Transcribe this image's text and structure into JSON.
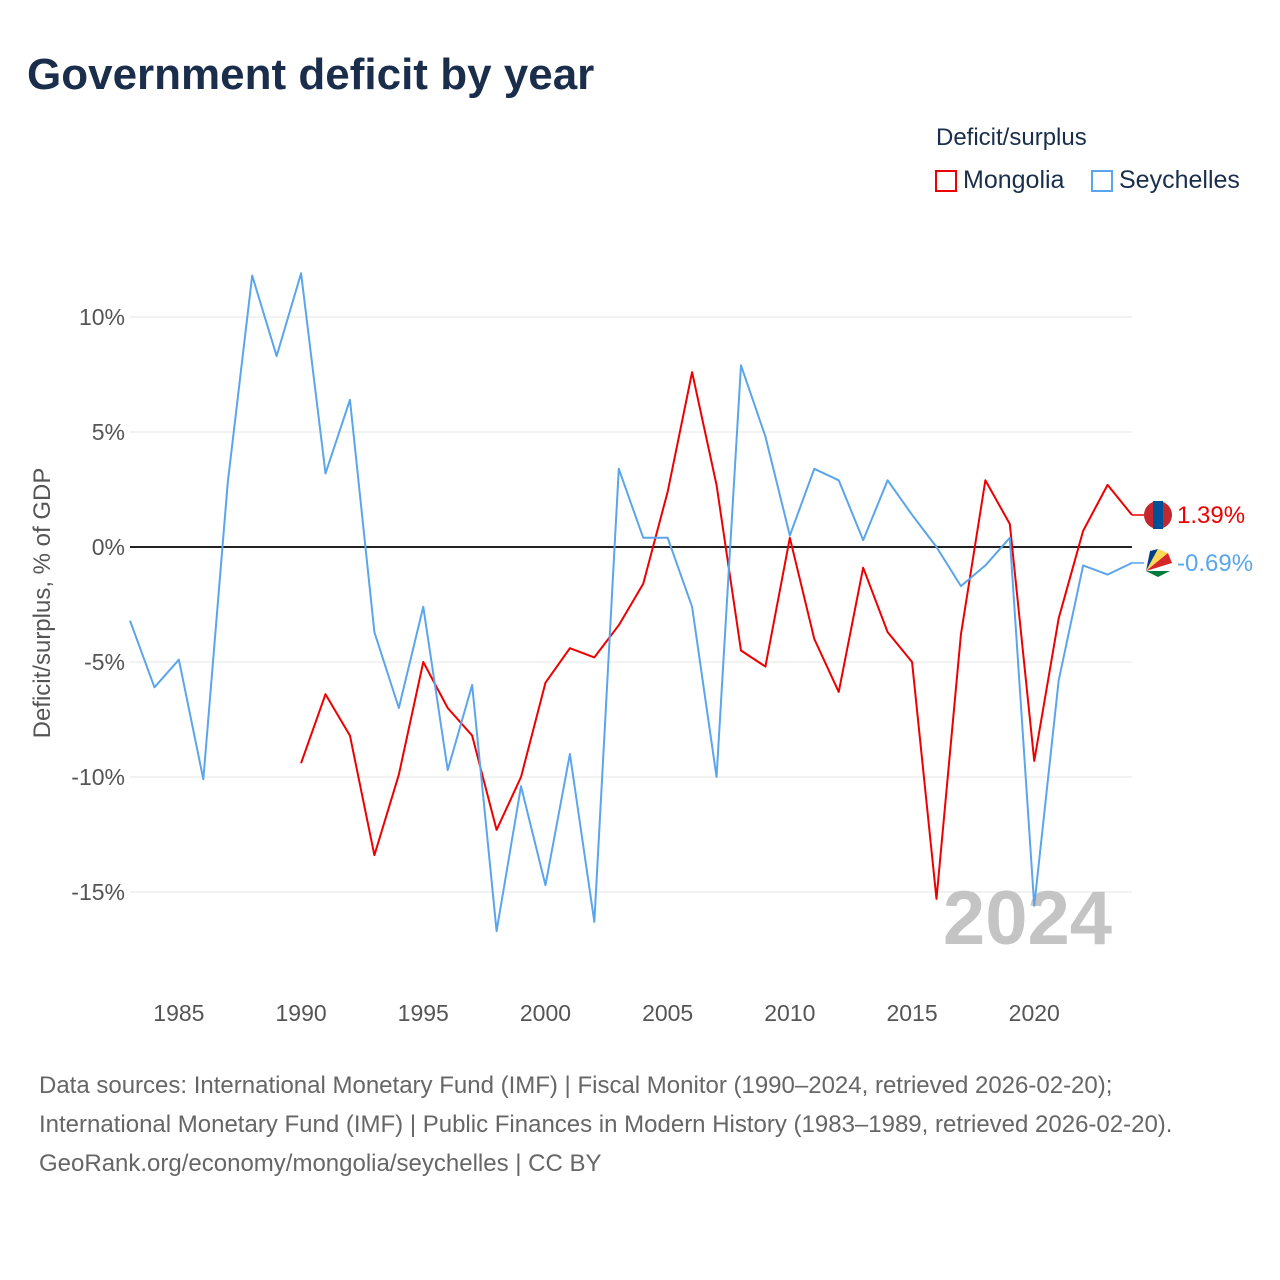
{
  "title": "Government deficit by year",
  "legend": {
    "title": "Deficit/surplus",
    "items": [
      "Mongolia",
      "Seychelles"
    ]
  },
  "year_watermark": "2024",
  "sources": {
    "line1": "Data sources: International Monetary Fund (IMF) | Fiscal Monitor (1990–2024, retrieved 2026-02-20); International Monetary Fund (IMF) | Public Finances in Modern History (1983–1989, retrieved 2026-02-20).",
    "line2": "GeoRank.org/economy/mongolia/seychelles | CC BY"
  },
  "chart_data": {
    "type": "line",
    "title": "Government deficit by year",
    "xlabel": "",
    "ylabel": "Deficit/surplus, % of GDP",
    "xlim": [
      1983,
      2024
    ],
    "ylim": [
      -19.3,
      12.9
    ],
    "x_ticks": [
      1985,
      1990,
      1995,
      2000,
      2005,
      2010,
      2015,
      2020
    ],
    "y_ticks": [
      10,
      5,
      0,
      -5,
      -10,
      -15
    ],
    "y_tick_labels": [
      "10%",
      "5%",
      "0%",
      "-5%",
      "-10%",
      "-15%"
    ],
    "grid": true,
    "legend_position": "top-right",
    "series": [
      {
        "name": "Mongolia",
        "color": "#ee0000",
        "end_label": "1.39%",
        "x_start": 1990,
        "values": [
          -9.4,
          -6.4,
          -8.2,
          -13.4,
          -9.9,
          -5.0,
          -7.0,
          -8.2,
          -12.3,
          -10.0,
          -5.9,
          -4.4,
          -4.8,
          -3.4,
          -1.6,
          2.4,
          7.6,
          2.7,
          -4.5,
          -5.2,
          0.4,
          -4.0,
          -6.3,
          -0.9,
          -3.7,
          -5.0,
          -15.3,
          -3.8,
          2.9,
          1.0,
          -9.3,
          -3.1,
          0.7,
          2.7,
          1.39
        ]
      },
      {
        "name": "Seychelles",
        "color": "#5aa5ec",
        "end_label": "-0.69%",
        "x_start": 1983,
        "values": [
          -3.2,
          -6.1,
          -4.9,
          -10.1,
          2.8,
          11.8,
          8.3,
          11.9,
          3.2,
          6.4,
          -3.7,
          -7.0,
          -2.6,
          -9.7,
          -6.0,
          -16.7,
          -10.4,
          -14.7,
          -9.0,
          -16.3,
          3.4,
          0.4,
          0.4,
          -2.6,
          -10.0,
          7.9,
          4.8,
          0.5,
          3.4,
          2.9,
          0.3,
          2.9,
          1.4,
          0.0,
          -1.7,
          -0.8,
          0.4,
          -15.6,
          -5.8,
          -0.8,
          -1.2,
          -0.69
        ]
      }
    ]
  }
}
